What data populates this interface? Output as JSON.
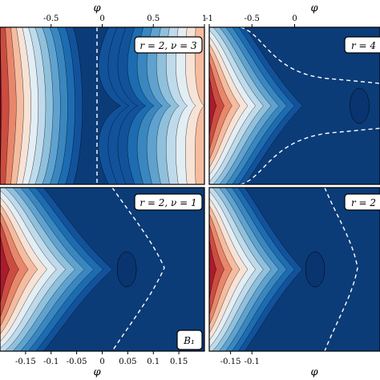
{
  "chart_data": [
    {
      "type": "heatmap",
      "badge": "r = 2, ν = 3",
      "xlabel": "φ",
      "x_ticks": [
        "-0.5",
        "0",
        "0.5",
        "1"
      ],
      "xlim": [
        -1,
        1
      ],
      "x_tick_values": [
        -0.5,
        0,
        0.5,
        1
      ]
    },
    {
      "type": "heatmap",
      "badge": "r = 4",
      "xlabel": "φ",
      "x_ticks": [
        "-1",
        "-0.5",
        "0"
      ],
      "xlim": [
        -1,
        1
      ],
      "x_tick_values": [
        -1,
        -0.5,
        0
      ]
    },
    {
      "type": "heatmap",
      "badge": "r = 2, ν = 1",
      "corner_label": "B₁",
      "xlabel": "φ",
      "x_ticks": [
        "-0.15",
        "-0.1",
        "-0.05",
        "0",
        "0.05",
        "0.1",
        "0.15"
      ],
      "xlim": [
        -0.2,
        0.2
      ],
      "x_tick_values": [
        -0.15,
        -0.1,
        -0.05,
        0,
        0.05,
        0.1,
        0.15
      ]
    },
    {
      "type": "heatmap",
      "badge": "r = 2",
      "xlabel": "φ",
      "x_ticks": [
        "-0.15",
        "-0.1"
      ],
      "xlim": [
        -0.2,
        0.2
      ],
      "x_tick_values": [
        -0.15,
        -0.1
      ]
    }
  ],
  "colors": {
    "palette": [
      "#0b3c78",
      "#12529b",
      "#1d6cb1",
      "#3a87c0",
      "#5fa2cf",
      "#8fc0dc",
      "#bfdaea",
      "#e3edf4",
      "#f7e3d6",
      "#f5bc9f",
      "#e8876b",
      "#cc4c41",
      "#a81c2c"
    ],
    "contour_line": "#000000",
    "separatrix": "#ffffff"
  }
}
